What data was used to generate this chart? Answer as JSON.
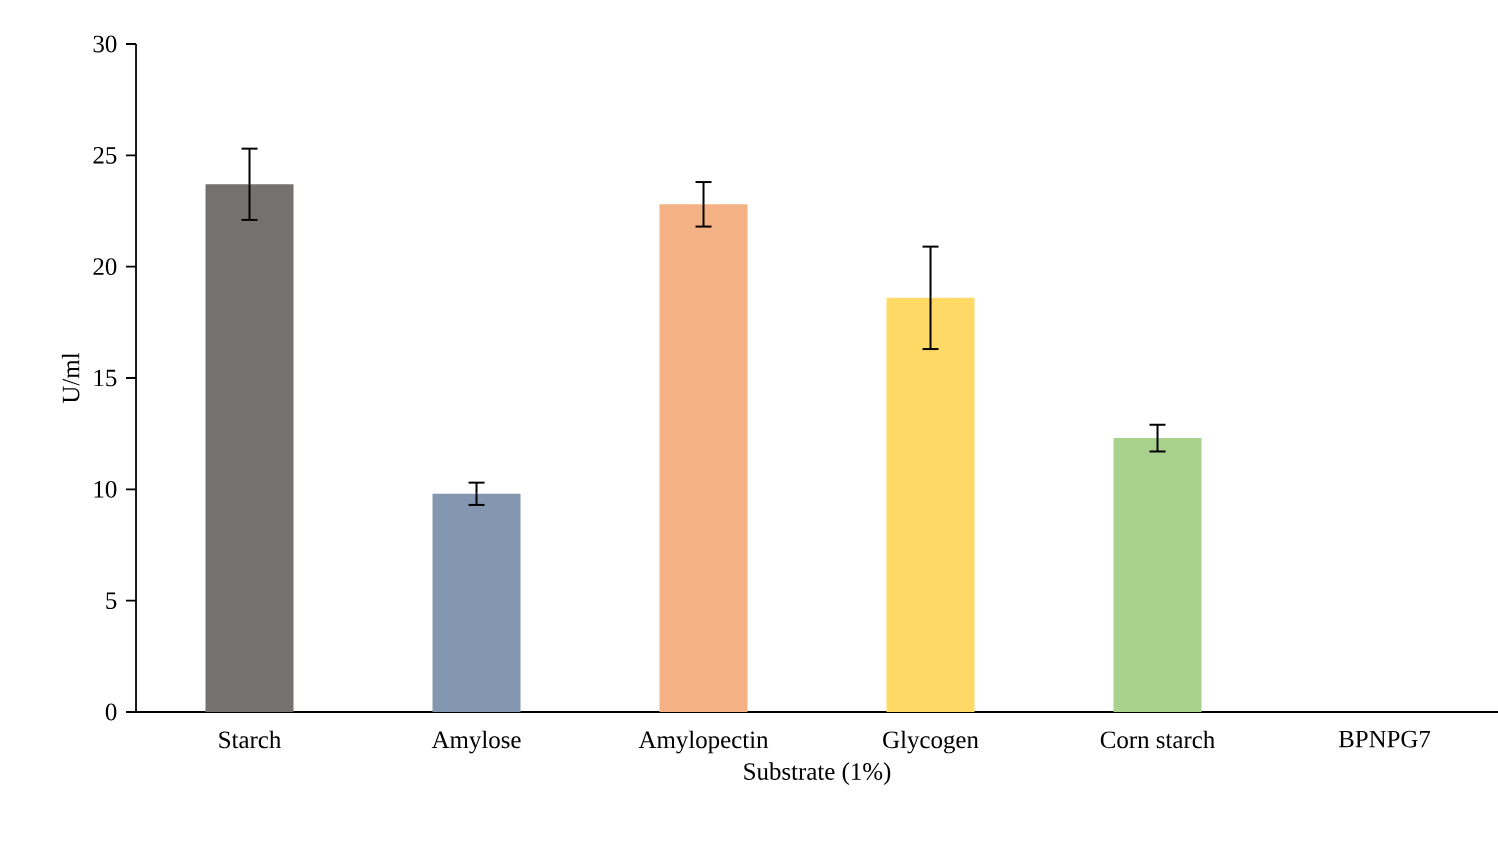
{
  "chart_data": {
    "type": "bar",
    "xlabel": "Substrate (1%)",
    "ylabel": "U/ml",
    "categories": [
      "Starch",
      "Amylose",
      "Amylopectin",
      "Glycogen",
      "Corn starch",
      "BPNPG7"
    ],
    "values": [
      23.7,
      9.8,
      22.8,
      18.6,
      12.3,
      0
    ],
    "errors": [
      1.6,
      0.5,
      1.0,
      2.3,
      0.6,
      null
    ],
    "colors": [
      "#767171",
      "#8497b0",
      "#f4b183",
      "#ffd966",
      "#a9d18e",
      "#a5a5a5"
    ],
    "ylim": [
      0,
      30
    ],
    "yticks": [
      0,
      5,
      10,
      15,
      20,
      25,
      30
    ],
    "grid": false
  }
}
